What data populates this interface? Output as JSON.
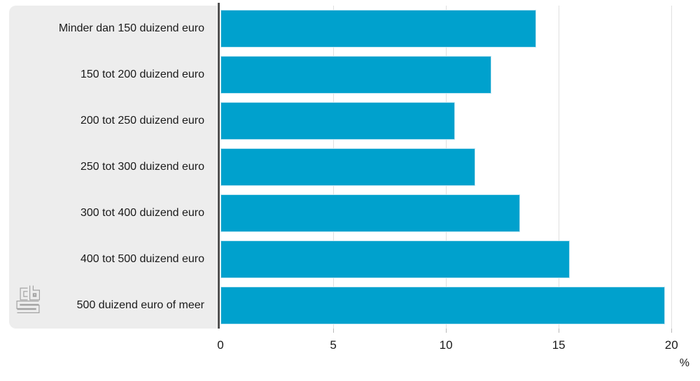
{
  "chart_data": {
    "type": "bar",
    "orientation": "horizontal",
    "categories": [
      "Minder dan 150 duizend euro",
      "150 tot 200 duizend euro",
      "200 tot 250 duizend euro",
      "250 tot 300 duizend euro",
      "300 tot 400 duizend euro",
      "400 tot 500 duizend euro",
      "500 duizend euro of meer"
    ],
    "values": [
      14.0,
      12.0,
      10.4,
      11.3,
      13.3,
      15.5,
      19.7
    ],
    "xlabel": "%",
    "x_ticks": [
      0,
      5,
      10,
      15,
      20
    ],
    "xlim": [
      0,
      20.8
    ],
    "grid": true,
    "legend": false,
    "colors": {
      "bar": "#00a1cd",
      "bar_border": "#bfe5f2",
      "label_panel": "#ededed",
      "axis_line": "#515151",
      "gridline": "#e0e0e0",
      "tick": "#b9b9b9",
      "text": "#1a1a1a",
      "logo": "#a3a3a3"
    }
  },
  "branding": {
    "logo_icon": "cbs-logo"
  }
}
